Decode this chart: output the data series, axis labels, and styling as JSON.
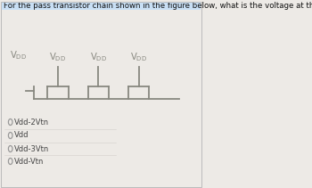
{
  "title": "For the pass transistor chain shown in the figure below, what is the voltage at the output?",
  "title_fontsize": 6.2,
  "title_bg": "#c8dff5",
  "title_text_color": "#111111",
  "bg_color": "#edeae6",
  "circuit_color": "#888880",
  "options": [
    "Vdd-2Vtn",
    "Vdd",
    "Vdd-3Vtn",
    "Vdd-Vtn"
  ],
  "option_fontsize": 6.0,
  "wire_lw": 1.3,
  "fig_w": 3.5,
  "fig_h": 2.11,
  "dpi": 100
}
